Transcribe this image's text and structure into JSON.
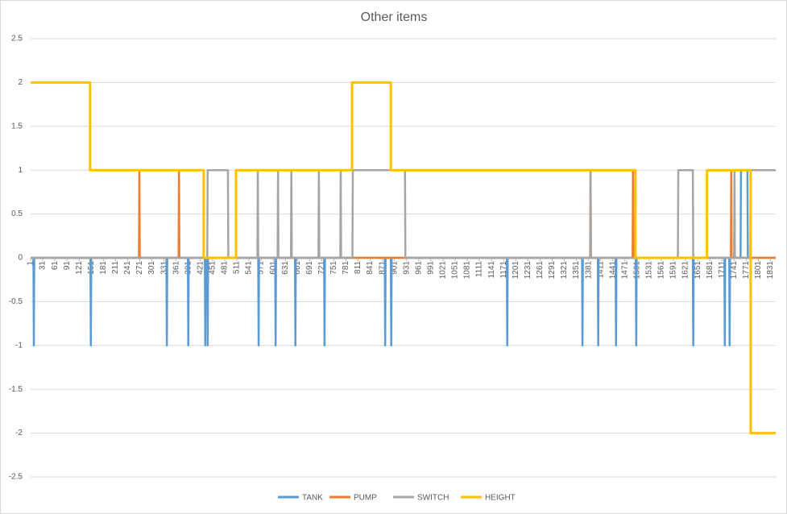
{
  "chart_data": {
    "type": "line",
    "title": "Other items",
    "xlim": [
      1,
      1844
    ],
    "ylim": [
      -2.5,
      2.5
    ],
    "yticks": [
      2.5,
      2,
      1.5,
      1,
      0.5,
      0,
      -0.5,
      -1,
      -1.5,
      -2,
      -2.5
    ],
    "xticks": [
      1,
      31,
      61,
      91,
      121,
      151,
      181,
      211,
      241,
      271,
      301,
      331,
      361,
      391,
      421,
      451,
      481,
      511,
      541,
      571,
      601,
      631,
      661,
      691,
      721,
      751,
      781,
      811,
      841,
      871,
      901,
      931,
      961,
      991,
      1021,
      1051,
      1081,
      1111,
      1141,
      1171,
      1201,
      1231,
      1261,
      1291,
      1321,
      1351,
      1381,
      1411,
      1441,
      1471,
      1501,
      1531,
      1561,
      1591,
      1621,
      1651,
      1681,
      1711,
      1741,
      1771,
      1801,
      1831
    ],
    "grid": true,
    "legend": "bottom",
    "series": [
      {
        "name": "TANK",
        "color": "#5b9bd5",
        "x": [
          1,
          8,
          9,
          10,
          149,
          150,
          151,
          337,
          338,
          339,
          390,
          391,
          392,
          432,
          433,
          434,
          438,
          439,
          440,
          564,
          565,
          566,
          606,
          607,
          608,
          655,
          656,
          657,
          727,
          728,
          729,
          877,
          878,
          879,
          892,
          893,
          894,
          1179,
          1180,
          1181,
          1365,
          1366,
          1367,
          1404,
          1405,
          1406,
          1448,
          1449,
          1450,
          1498,
          1499,
          1500,
          1639,
          1640,
          1641,
          1717,
          1718,
          1719,
          1729,
          1730,
          1731,
          1757,
          1758,
          1774,
          1775,
          1844
        ],
        "values": [
          0,
          0,
          -1,
          0,
          0,
          -1,
          0,
          0,
          -1,
          0,
          0,
          -1,
          0,
          0,
          -1,
          0,
          0,
          -1,
          0,
          0,
          -1,
          0,
          0,
          -1,
          0,
          0,
          -1,
          0,
          0,
          -1,
          0,
          0,
          -1,
          0,
          0,
          -1,
          0,
          0,
          -1,
          0,
          0,
          -1,
          0,
          0,
          -1,
          0,
          0,
          -1,
          0,
          0,
          -1,
          0,
          0,
          -1,
          0,
          0,
          -1,
          0,
          0,
          -1,
          0,
          0,
          1,
          1,
          0,
          0
        ]
      },
      {
        "name": "PUMP",
        "color": "#ed7d31",
        "x": [
          1,
          269,
          270,
          271,
          367,
          368,
          369,
          1385,
          1386,
          1387,
          1490,
          1491,
          1492,
          1733,
          1734,
          1735,
          1844
        ],
        "values": [
          0,
          0,
          1,
          0,
          0,
          1,
          0,
          0,
          1,
          0,
          0,
          1,
          0,
          0,
          1,
          0,
          0
        ]
      },
      {
        "name": "SWITCH",
        "color": "#a5a5a5",
        "x": [
          1,
          438,
          439,
          489,
          490,
          562,
          563,
          564,
          612,
          613,
          614,
          645,
          646,
          647,
          713,
          714,
          715,
          767,
          768,
          769,
          797,
          798,
          927,
          928,
          1385,
          1386,
          1387,
          1602,
          1603,
          1639,
          1640,
          1741,
          1742,
          1743,
          1781,
          1782,
          1844
        ],
        "values": [
          0,
          0,
          1,
          1,
          0,
          0,
          1,
          0,
          0,
          1,
          0,
          0,
          1,
          0,
          0,
          1,
          0,
          0,
          1,
          0,
          0,
          1,
          1,
          0,
          0,
          1,
          0,
          0,
          1,
          1,
          0,
          0,
          1,
          0,
          0,
          1,
          1
        ]
      },
      {
        "name": "HEIGHT",
        "color": "#ffc000",
        "x": [
          1,
          148,
          148,
          429,
          429,
          509,
          509,
          796,
          796,
          892,
          892,
          1497,
          1497,
          1674,
          1674,
          1782,
          1782,
          1844
        ],
        "values": [
          2,
          2,
          1,
          1,
          0,
          0,
          1,
          1,
          2,
          2,
          1,
          1,
          0,
          0,
          1,
          1,
          -2,
          -2
        ]
      }
    ]
  }
}
